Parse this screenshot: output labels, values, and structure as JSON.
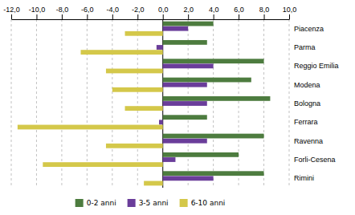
{
  "chart_data": {
    "type": "bar",
    "orientation": "horizontal",
    "categories": [
      "Piacenza",
      "Parma",
      "Reggio Emilia",
      "Modena",
      "Bologna",
      "Ferrara",
      "Ravenna",
      "Forli-Cesena",
      "Rimini"
    ],
    "series": [
      {
        "name": "0-2 anni",
        "color": "#4d7c3f",
        "values": [
          4.0,
          3.5,
          8.0,
          7.0,
          8.5,
          3.5,
          8.0,
          6.0,
          8.0
        ]
      },
      {
        "name": "3-5 anni",
        "color": "#6a3d9a",
        "values": [
          2.0,
          -0.5,
          4.0,
          3.5,
          3.5,
          -0.3,
          3.5,
          1.0,
          4.0
        ]
      },
      {
        "name": "6-10 anni",
        "color": "#d4c84a",
        "values": [
          -3.0,
          -6.5,
          -4.5,
          -4.0,
          -3.0,
          -11.5,
          -4.5,
          -9.5,
          -1.5
        ]
      }
    ],
    "xlim": [
      -12.0,
      10.0
    ],
    "xticks": [
      {
        "value": -12.0,
        "label": "-12,0"
      },
      {
        "value": -10.0,
        "label": "-10,0"
      },
      {
        "value": -8.0,
        "label": "-8,0"
      },
      {
        "value": -6.0,
        "label": "-6,0"
      },
      {
        "value": -4.0,
        "label": "-4,0"
      },
      {
        "value": -2.0,
        "label": "-2,0"
      },
      {
        "value": 0.0,
        "label": "0,0"
      },
      {
        "value": 2.0,
        "label": "2,0"
      },
      {
        "value": 4.0,
        "label": "4,0"
      },
      {
        "value": 6.0,
        "label": "6,0"
      },
      {
        "value": 8.0,
        "label": "8,0"
      },
      {
        "value": 10.0,
        "label": "10,0"
      }
    ],
    "grid": true,
    "legend": "bottom"
  }
}
